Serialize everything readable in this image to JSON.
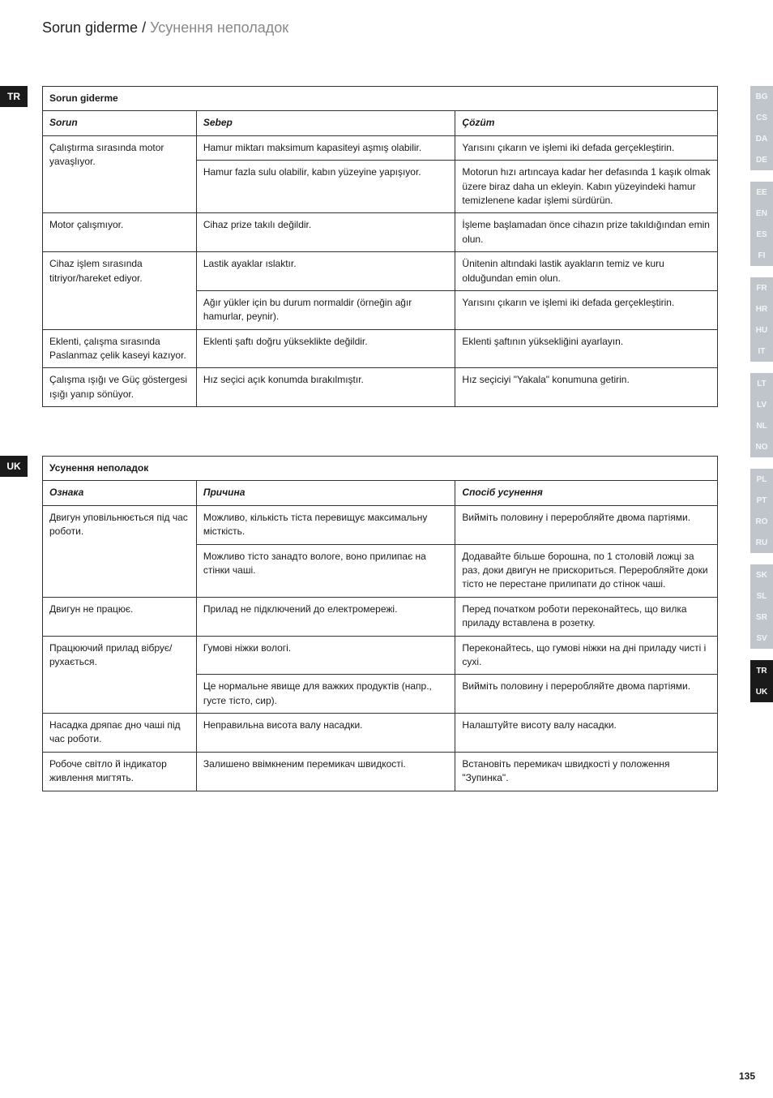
{
  "pageTitle": {
    "part1": "Sorun giderme  /  ",
    "part2": "Усунення неполадок"
  },
  "pageNumber": "135",
  "leftTabs": {
    "tr": "TR",
    "uk": "UK"
  },
  "sideTabs": [
    {
      "code": "BG",
      "active": false
    },
    {
      "code": "CS",
      "active": false
    },
    {
      "code": "DA",
      "active": false
    },
    {
      "code": "DE",
      "active": false
    },
    null,
    {
      "code": "EE",
      "active": false
    },
    {
      "code": "EN",
      "active": false
    },
    {
      "code": "ES",
      "active": false
    },
    {
      "code": "FI",
      "active": false
    },
    null,
    {
      "code": "FR",
      "active": false
    },
    {
      "code": "HR",
      "active": false
    },
    {
      "code": "HU",
      "active": false
    },
    {
      "code": "IT",
      "active": false
    },
    null,
    {
      "code": "LT",
      "active": false
    },
    {
      "code": "LV",
      "active": false
    },
    {
      "code": "NL",
      "active": false
    },
    {
      "code": "NO",
      "active": false
    },
    null,
    {
      "code": "PL",
      "active": false
    },
    {
      "code": "PT",
      "active": false
    },
    {
      "code": "RO",
      "active": false
    },
    {
      "code": "RU",
      "active": false
    },
    null,
    {
      "code": "SK",
      "active": false
    },
    {
      "code": "SL",
      "active": false
    },
    {
      "code": "SR",
      "active": false
    },
    {
      "code": "SV",
      "active": false
    },
    null,
    {
      "code": "TR",
      "active": true
    },
    {
      "code": "UK",
      "active": true
    }
  ],
  "trTable": {
    "title": "Sorun giderme",
    "headers": {
      "c1": "Sorun",
      "c2": "Sebep",
      "c3": "Çözüm"
    },
    "r1": {
      "c1": "Çalıştırma sırasında motor yavaşlıyor.",
      "c2": "Hamur miktarı maksimum kapasiteyi aşmış olabilir.",
      "c3": "Yarısını çıkarın ve işlemi iki defada gerçekleştirin."
    },
    "r2": {
      "c2": "Hamur fazla sulu olabilir, kabın yüzeyine yapışıyor.",
      "c3": "Motorun hızı artıncaya kadar her defasında 1 kaşık olmak üzere biraz daha un ekleyin. Kabın yüzeyindeki hamur temizlenene kadar işlemi sürdürün."
    },
    "r3": {
      "c1": "Motor çalışmıyor.",
      "c2": "Cihaz prize takılı değildir.",
      "c3": "İşleme başlamadan önce cihazın prize takıldığından emin olun."
    },
    "r4": {
      "c1": "Cihaz işlem sırasında titriyor/hareket ediyor.",
      "c2": "Lastik ayaklar ıslaktır.",
      "c3": "Ünitenin altındaki lastik ayakların temiz ve kuru olduğundan emin olun."
    },
    "r5": {
      "c2": "Ağır yükler için bu durum normaldir (örneğin ağır hamurlar, peynir).",
      "c3": "Yarısını çıkarın ve işlemi iki defada gerçekleştirin."
    },
    "r6": {
      "c1": "Eklenti, çalışma sırasında Paslanmaz çelik kaseyi kazıyor.",
      "c2": "Eklenti şaftı doğru yükseklikte değildir.",
      "c3": "Eklenti şaftının yüksekliğini ayarlayın."
    },
    "r7": {
      "c1": "Çalışma ışığı ve Güç göstergesi ışığı yanıp sönüyor.",
      "c2": "Hız seçici açık konumda bırakılmıştır.",
      "c3": "Hız seçiciyi \"Yakala\" konumuna getirin."
    }
  },
  "ukTable": {
    "title": "Усунення неполадок",
    "headers": {
      "c1": "Ознака",
      "c2": "Причина",
      "c3": "Спосіб усунення"
    },
    "r1": {
      "c1": "Двигун уповільнюється під час роботи.",
      "c2": "Можливо, кількість тіста перевищує максимальну місткість.",
      "c3": "Вийміть половину і переробляйте двома партіями."
    },
    "r2": {
      "c2": "Можливо тісто занадто вологе, воно прилипає на стінки чаші.",
      "c3": "Додавайте більше борошна, по 1 столовій ложці за раз, доки двигун не прискориться. Переробляйте доки тісто не перестане прилипати до стінок чаші."
    },
    "r3": {
      "c1": "Двигун не працює.",
      "c2": "Прилад не підключений до електромережі.",
      "c3": "Перед початком роботи переконайтесь, що вилка приладу вставлена в розетку."
    },
    "r4": {
      "c1": "Працюючий прилад вібрує/рухається.",
      "c2": "Гумові ніжки вологі.",
      "c3": "Переконайтесь, що гумові ніжки на дні приладу чисті і сухі."
    },
    "r5": {
      "c2": "Це нормальне явище для важких продуктів (напр., густе тісто, сир).",
      "c3": "Вийміть половину і переробляйте двома партіями."
    },
    "r6": {
      "c1": "Насадка дряпає дно чаші під час роботи.",
      "c2": "Неправильна висота валу насадки.",
      "c3": "Налаштуйте висоту валу насадки."
    },
    "r7": {
      "c1": "Робоче світло й індикатор живлення мигтять.",
      "c2": "Залишено ввімкненим перемикач швидкості.",
      "c3": "Встановіть перемикач швидкості у положення \"Зупинка\"."
    }
  }
}
